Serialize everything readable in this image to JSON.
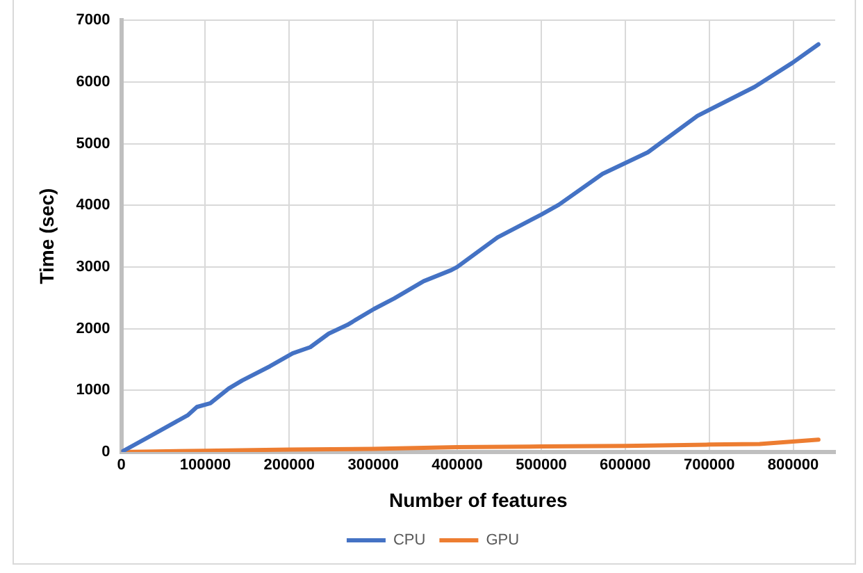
{
  "chart_data": {
    "type": "line",
    "xlabel": "Number of features",
    "ylabel": "Time (sec)",
    "xlim": [
      0,
      850000
    ],
    "xticks": [
      0,
      100000,
      200000,
      300000,
      400000,
      500000,
      600000,
      700000,
      800000
    ],
    "ylim": [
      0,
      7000
    ],
    "yticks": [
      0,
      1000,
      2000,
      3000,
      4000,
      5000,
      6000,
      7000
    ],
    "grid": true,
    "legend": "bottom",
    "marker": "none",
    "line_style": "solid",
    "series": [
      {
        "name": "CPU",
        "color": "#4472c4",
        "x": [
          0,
          30800,
          79500,
          90000,
          106000,
          128000,
          144000,
          177000,
          204000,
          225000,
          247000,
          269000,
          301000,
          325000,
          360000,
          393000,
          400000,
          448000,
          500000,
          521000,
          573000,
          627000,
          686000,
          754000,
          799000,
          830000
        ],
        "values": [
          0,
          230,
          600,
          730,
          790,
          1030,
          1160,
          1390,
          1600,
          1700,
          1920,
          2060,
          2320,
          2490,
          2770,
          2950,
          3000,
          3480,
          3850,
          4010,
          4510,
          4860,
          5450,
          5920,
          6310,
          6610
        ]
      },
      {
        "name": "GPU",
        "color": "#ed7d31",
        "x": [
          0,
          100000,
          200000,
          300000,
          400000,
          500000,
          600000,
          700000,
          760000,
          830000
        ],
        "values": [
          0,
          20,
          40,
          50,
          80,
          90,
          100,
          120,
          130,
          200
        ]
      }
    ]
  }
}
